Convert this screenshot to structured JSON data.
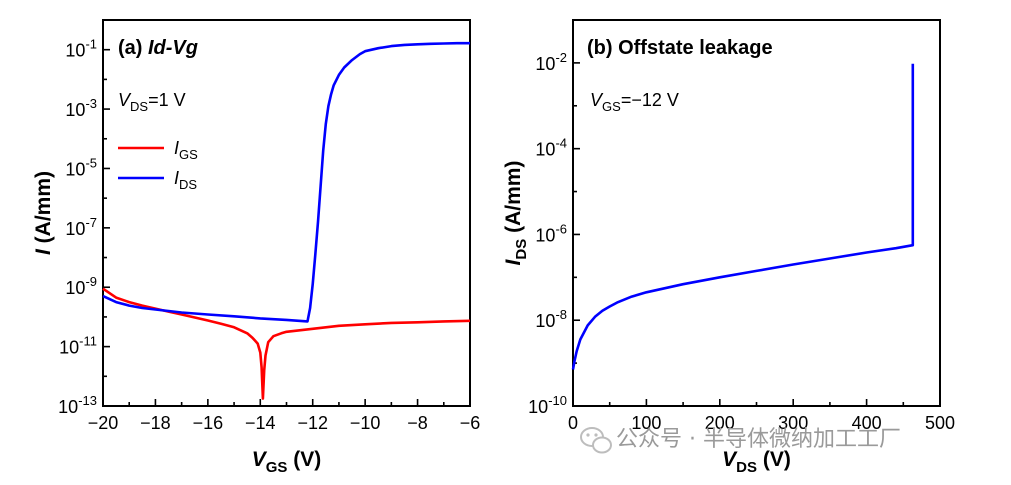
{
  "chart_data": [
    {
      "panel": "a",
      "type": "line",
      "title": "(a) Id-Vg",
      "title_prefix": "(a) ",
      "title_italic": "Id-Vg",
      "xlabel": "VGS (V)",
      "xlabel_main": "V",
      "xlabel_sub": "GS",
      "xlabel_unit": " (V)",
      "ylabel": "I (A/mm)",
      "ylabel_main": "I",
      "ylabel_unit": " (A/mm)",
      "yscale": "log",
      "xlim": [
        -20,
        -6
      ],
      "ylim_exp": [
        -13,
        0
      ],
      "xticks": [
        -20,
        -18,
        -16,
        -14,
        -12,
        -10,
        -8,
        -6
      ],
      "xtick_labels": [
        "−20",
        "−18",
        "−16",
        "−14",
        "−12",
        "−10",
        "−8",
        "−6"
      ],
      "ytick_exps": [
        -13,
        -11,
        -9,
        -7,
        -5,
        -3,
        -1
      ],
      "ytick_labels": [
        "-13",
        "-11",
        "-9",
        "-7",
        "-5",
        "-3",
        "-1"
      ],
      "ytick_base": "10",
      "annotation": "VDS=1 V",
      "annotation_main": "V",
      "annotation_sub": "DS",
      "annotation_rest": "=1 V",
      "legend": [
        {
          "name": "IGS",
          "main": "I",
          "sub": "GS",
          "color": "#ff0000"
        },
        {
          "name": "IDS",
          "main": "I",
          "sub": "DS",
          "color": "#0000ff"
        }
      ],
      "series": [
        {
          "name": "IGS",
          "color": "#ff0000",
          "x": [
            -20,
            -19.5,
            -19,
            -18.5,
            -18,
            -17.5,
            -17,
            -16.5,
            -16,
            -15.5,
            -15,
            -14.5,
            -14.3,
            -14.1,
            -14.0,
            -13.95,
            -13.9,
            -13.85,
            -13.8,
            -13.7,
            -13.5,
            -13.2,
            -13,
            -12.5,
            -12,
            -11.5,
            -11,
            -10,
            -9,
            -8,
            -7,
            -6
          ],
          "log_y": [
            -9.05,
            -9.35,
            -9.5,
            -9.62,
            -9.72,
            -9.82,
            -9.92,
            -10.02,
            -10.12,
            -10.23,
            -10.35,
            -10.55,
            -10.7,
            -10.9,
            -11.2,
            -11.7,
            -12.75,
            -11.8,
            -11.3,
            -10.85,
            -10.65,
            -10.55,
            -10.5,
            -10.45,
            -10.4,
            -10.35,
            -10.3,
            -10.25,
            -10.2,
            -10.18,
            -10.15,
            -10.13
          ]
        },
        {
          "name": "IDS",
          "color": "#0000ff",
          "x": [
            -20,
            -19.5,
            -19,
            -18.5,
            -18,
            -17,
            -16,
            -15,
            -14,
            -13,
            -12.2,
            -12.1,
            -12.0,
            -11.9,
            -11.8,
            -11.7,
            -11.6,
            -11.5,
            -11.4,
            -11.3,
            -11.2,
            -11.0,
            -10.8,
            -10.5,
            -10.2,
            -10.0,
            -9.5,
            -9.0,
            -8.5,
            -8.0,
            -7.5,
            -7.0,
            -6.5,
            -6.0
          ],
          "log_y": [
            -9.3,
            -9.5,
            -9.62,
            -9.7,
            -9.75,
            -9.85,
            -9.92,
            -9.98,
            -10.05,
            -10.1,
            -10.15,
            -9.7,
            -8.9,
            -7.9,
            -6.8,
            -5.6,
            -4.4,
            -3.5,
            -2.9,
            -2.5,
            -2.2,
            -1.85,
            -1.6,
            -1.35,
            -1.15,
            -1.05,
            -0.95,
            -0.88,
            -0.84,
            -0.82,
            -0.8,
            -0.79,
            -0.78,
            -0.78
          ]
        }
      ]
    },
    {
      "panel": "b",
      "type": "line",
      "title": "(b) Offstate leakage",
      "xlabel": "VDS (V)",
      "xlabel_main": "V",
      "xlabel_sub": "DS",
      "xlabel_unit": " (V)",
      "ylabel": "IDS (A/mm)",
      "ylabel_main": "I",
      "ylabel_sub": "DS",
      "ylabel_unit": " (A/mm)",
      "yscale": "log",
      "xlim": [
        0,
        500
      ],
      "ylim_exp": [
        -10,
        -1
      ],
      "xticks": [
        0,
        100,
        200,
        300,
        400,
        500
      ],
      "xtick_labels": [
        "0",
        "100",
        "200",
        "300",
        "400",
        "500"
      ],
      "ytick_exps": [
        -10,
        -8,
        -6,
        -4,
        -2
      ],
      "ytick_labels": [
        "-10",
        "-8",
        "-6",
        "-4",
        "-2"
      ],
      "ytick_base": "10",
      "annotation": "VGS=−12 V",
      "annotation_main": "V",
      "annotation_sub": "GS",
      "annotation_rest": "=−12 V",
      "series": [
        {
          "name": "IDS",
          "color": "#0000ff",
          "x": [
            0,
            2,
            5,
            10,
            20,
            30,
            40,
            50,
            60,
            80,
            100,
            150,
            200,
            250,
            300,
            350,
            400,
            440,
            463,
            463,
            463
          ],
          "log_y": [
            -9.15,
            -8.95,
            -8.72,
            -8.45,
            -8.12,
            -7.92,
            -7.78,
            -7.68,
            -7.59,
            -7.45,
            -7.35,
            -7.16,
            -7.0,
            -6.85,
            -6.7,
            -6.56,
            -6.42,
            -6.32,
            -6.25,
            -2.6,
            -2.02
          ]
        }
      ]
    }
  ],
  "watermark": {
    "text": "公众号 · 半导体微纳加工工厂",
    "icon": "wechat-icon"
  }
}
